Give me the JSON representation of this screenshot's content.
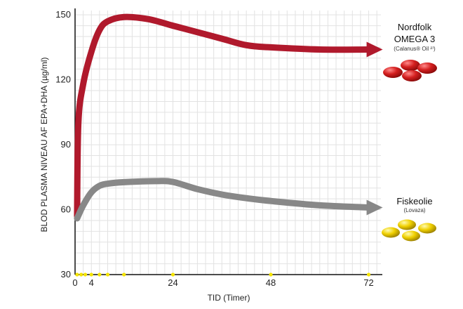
{
  "chart_data": {
    "type": "line",
    "xlabel": "TID (Timer)",
    "ylabel": "BLOD PLASMA NIVEAU AF EPA+DHA (µg/ml)",
    "xlim": [
      0,
      75
    ],
    "ylim": [
      30,
      152
    ],
    "x_ticks": [
      "0",
      "4",
      "24",
      "48",
      "72"
    ],
    "y_ticks": [
      "30",
      "60",
      "90",
      "120",
      "150"
    ],
    "grid": true,
    "sample_markers_x": [
      0.5,
      1.5,
      2.5,
      4,
      6,
      8,
      12,
      24,
      48,
      72
    ],
    "sample_marker_color": "#f5e400",
    "series": [
      {
        "name": "Nordfolk OMEGA 3",
        "sub_label": "(Calanus® Oil ²⁾)",
        "color": "#b0192c",
        "points": [
          [
            0.5,
            57
          ],
          [
            0.8,
            100
          ],
          [
            2,
            118
          ],
          [
            4,
            133
          ],
          [
            6,
            143
          ],
          [
            8,
            147
          ],
          [
            12,
            149
          ],
          [
            18,
            148
          ],
          [
            24,
            145
          ],
          [
            30,
            142
          ],
          [
            36,
            139
          ],
          [
            42,
            136
          ],
          [
            48,
            135
          ],
          [
            60,
            134
          ],
          [
            72,
            134
          ]
        ]
      },
      {
        "name": "Fiskeolie",
        "sub_label": "(Lovaza)",
        "color": "#888888",
        "points": [
          [
            0.5,
            56
          ],
          [
            2,
            62
          ],
          [
            4,
            68
          ],
          [
            6,
            71
          ],
          [
            8,
            72
          ],
          [
            12,
            72.7
          ],
          [
            20,
            73.2
          ],
          [
            24,
            72.8
          ],
          [
            30,
            69.5
          ],
          [
            36,
            67
          ],
          [
            42,
            65.3
          ],
          [
            48,
            64
          ],
          [
            60,
            62
          ],
          [
            72,
            61
          ]
        ]
      }
    ]
  }
}
